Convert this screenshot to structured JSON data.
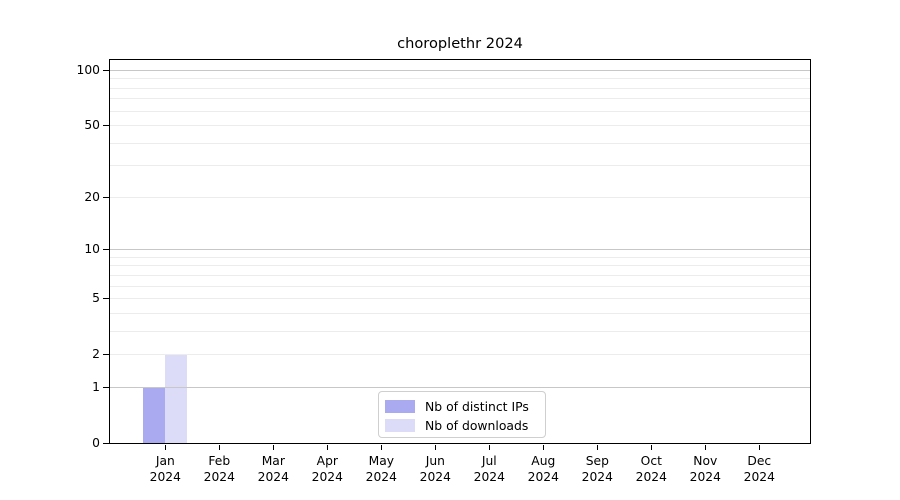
{
  "chart_data": {
    "type": "bar",
    "title": "choroplethr 2024",
    "x_tick_months": [
      "Jan",
      "Feb",
      "Mar",
      "Apr",
      "May",
      "Jun",
      "Jul",
      "Aug",
      "Sep",
      "Oct",
      "Nov",
      "Dec"
    ],
    "x_tick_year": "2024",
    "series": [
      {
        "name": "Nb of distinct IPs",
        "color": "#aaaaf0",
        "values": [
          1,
          0,
          0,
          0,
          0,
          0,
          0,
          0,
          0,
          0,
          0,
          0
        ]
      },
      {
        "name": "Nb of downloads",
        "color": "#dcdcf9",
        "values": [
          2,
          0,
          0,
          0,
          0,
          0,
          0,
          0,
          0,
          0,
          0,
          0
        ]
      }
    ],
    "yscale": "log10(1+x)",
    "y_tick_values": [
      0,
      1,
      2,
      5,
      10,
      20,
      50,
      100
    ],
    "y_major_gridlines": [
      1,
      10,
      100
    ],
    "y_minor_gridlines": [
      2,
      3,
      4,
      5,
      6,
      7,
      8,
      9,
      20,
      30,
      40,
      50,
      60,
      70,
      80,
      90
    ],
    "ylim": [
      0,
      114
    ],
    "grid": "on",
    "legend_position": "inside-bottom-center",
    "colors": {
      "major_grid": "#c7c7c7",
      "minor_grid": "#ececec",
      "axis": "#000000",
      "background": "#ffffff",
      "legend_border": "#cfcfcf"
    }
  }
}
